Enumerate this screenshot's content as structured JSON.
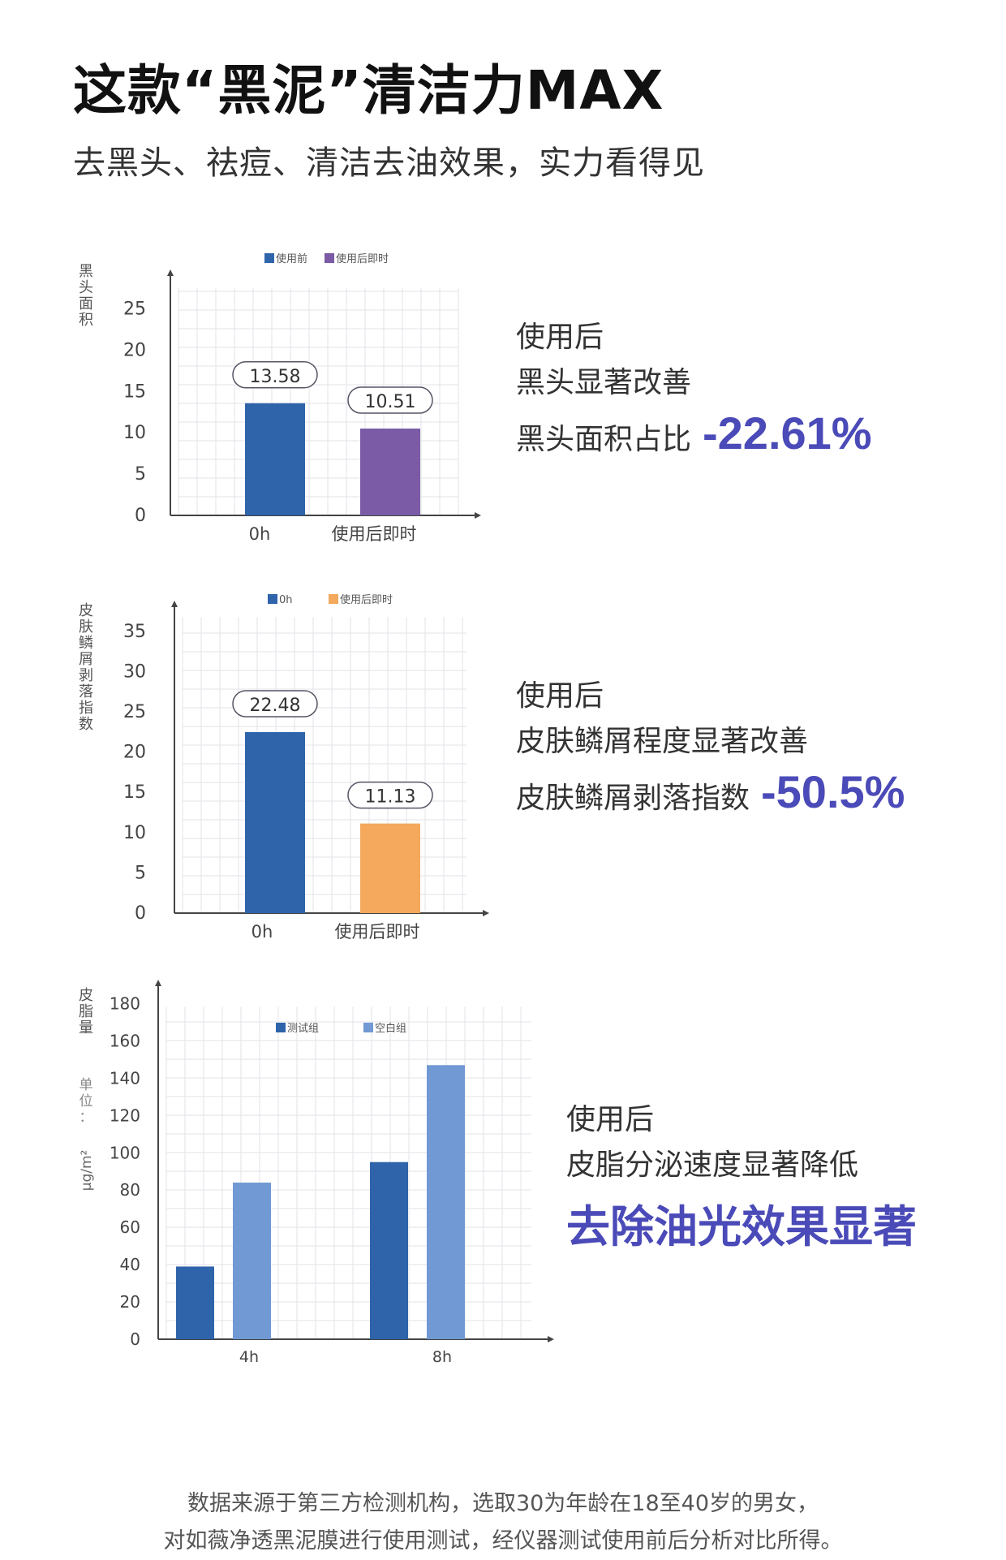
{
  "header": {
    "title": "这款“黑泥”清洁力MAX",
    "subtitle": "去黑头、祛痘、清洁去油效果，实力看得见"
  },
  "chart_data": [
    {
      "type": "bar",
      "ylabel": "黑头面积",
      "categories": [
        "0h",
        "使用后即时"
      ],
      "series": [
        {
          "name": "使用前",
          "values": [
            13.58,
            null
          ],
          "color": "#2f64aa"
        },
        {
          "name": "使用后即时",
          "values": [
            null,
            10.51
          ],
          "color": "#7b5aa6"
        }
      ],
      "data_labels": [
        "13.58",
        "10.51"
      ],
      "yticks": [
        0,
        5,
        10,
        15,
        20,
        25
      ],
      "ylim": [
        0,
        28
      ]
    },
    {
      "type": "bar",
      "ylabel": "皮肤鳞屑剥落指数",
      "categories": [
        "0h",
        "使用后即时"
      ],
      "series": [
        {
          "name": "0h",
          "values": [
            22.48,
            null
          ],
          "color": "#2f64aa"
        },
        {
          "name": "使用后即时",
          "values": [
            null,
            11.13
          ],
          "color": "#f4a95c"
        }
      ],
      "data_labels": [
        "22.48",
        "11.13"
      ],
      "yticks": [
        0,
        5,
        10,
        15,
        20,
        25,
        30,
        35
      ],
      "ylim": [
        0,
        37
      ]
    },
    {
      "type": "bar",
      "ylabel": "皮脂量",
      "yunit_label": "单位：",
      "yunit": "μg/m²",
      "categories": [
        "4h",
        "8h"
      ],
      "series": [
        {
          "name": "测试组",
          "values": [
            39,
            95
          ],
          "color": "#2f64aa"
        },
        {
          "name": "空白组",
          "values": [
            84,
            147
          ],
          "color": "#7199d3"
        }
      ],
      "yticks": [
        0,
        20,
        40,
        60,
        80,
        100,
        120,
        140,
        160,
        180
      ],
      "ylim": [
        0,
        185
      ]
    }
  ],
  "descriptions": [
    {
      "line1": "使用后",
      "line2": "黑头显著改善",
      "line3": "黑头面积占比",
      "stat": "-22.61%"
    },
    {
      "line1": "使用后",
      "line2": "皮肤鳞屑程度显著改善",
      "line3": "皮肤鳞屑剥落指数",
      "stat": "-50.5%"
    },
    {
      "line1": "使用后",
      "line2": "皮脂分泌速度显著降低",
      "big": "去除油光效果显著"
    }
  ],
  "footer": {
    "line1": "数据来源于第三方检测机构，选取30为年龄在18至40岁的男女，",
    "line2": "对如薇净透黑泥膜进行使用测试，经仪器测试使用前后分析对比所得。"
  }
}
